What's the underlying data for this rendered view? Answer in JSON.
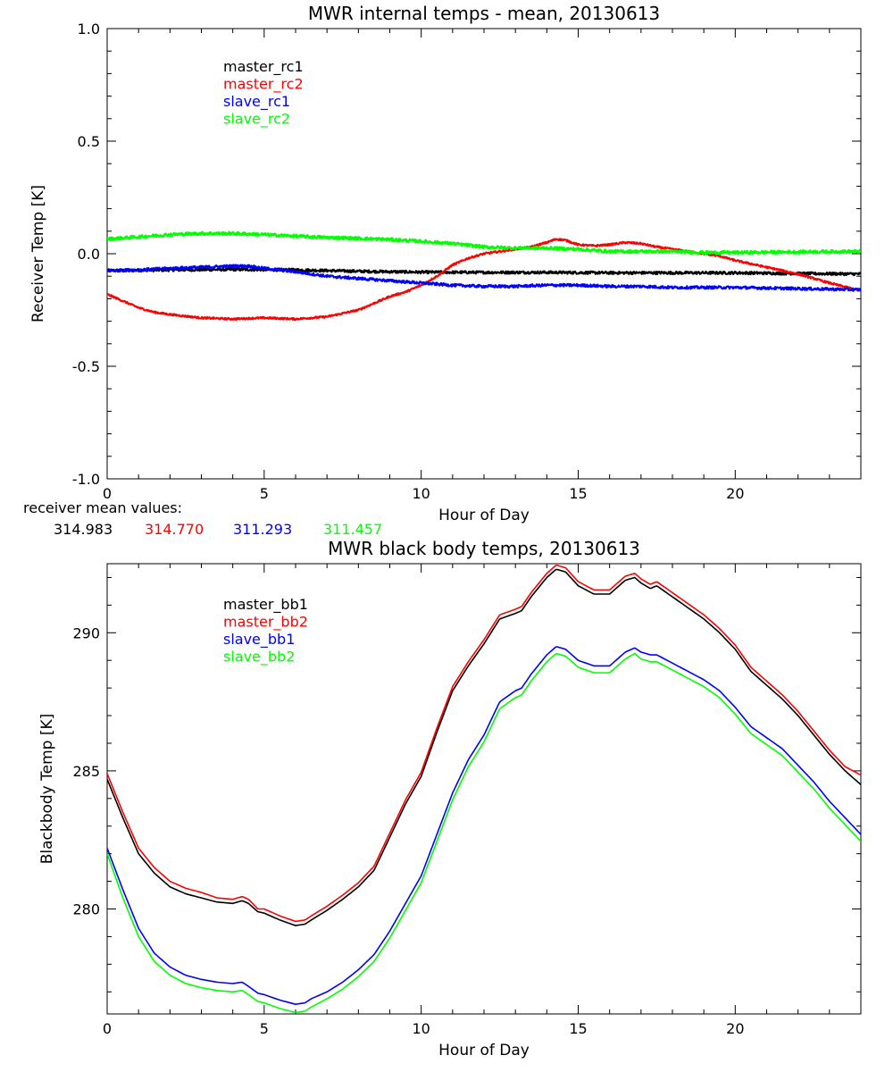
{
  "chart_data": [
    {
      "type": "line",
      "title": "MWR internal temps - mean, 20130613",
      "xlabel": "Hour of Day",
      "ylabel": "Receiver Temp [K]",
      "xlim": [
        0,
        24
      ],
      "ylim": [
        -1.0,
        1.0
      ],
      "xticks": [
        0,
        5,
        10,
        15,
        20
      ],
      "xtick_labels": [
        "0",
        "5",
        "10",
        "15",
        "20"
      ],
      "yticks": [
        -1.0,
        -0.5,
        0.0,
        0.5,
        1.0
      ],
      "ytick_labels": [
        "-1.0",
        "-0.5",
        "0.0",
        "0.5",
        "1.0"
      ],
      "legend_position": "top-left",
      "series": [
        {
          "name": "master_rc1",
          "color": "#000000",
          "noise": 0.006,
          "x": [
            0,
            2,
            4,
            6,
            8,
            10,
            12,
            14,
            16,
            18,
            20,
            22,
            24
          ],
          "values": [
            -0.075,
            -0.072,
            -0.07,
            -0.072,
            -0.078,
            -0.082,
            -0.083,
            -0.083,
            -0.085,
            -0.085,
            -0.085,
            -0.088,
            -0.09
          ]
        },
        {
          "name": "master_rc2",
          "color": "#ff0000",
          "noise": 0.004,
          "x": [
            0,
            0.5,
            1,
            1.5,
            2,
            3,
            4,
            5,
            6,
            7,
            8,
            8.5,
            9,
            9.5,
            10,
            10.5,
            11,
            11.5,
            12,
            12.5,
            13,
            13.5,
            14,
            14.3,
            14.6,
            15,
            15.5,
            16,
            16.5,
            17,
            17.5,
            18,
            18.5,
            19,
            19.5,
            20,
            21,
            22,
            23,
            24
          ],
          "values": [
            -0.18,
            -0.21,
            -0.24,
            -0.26,
            -0.27,
            -0.285,
            -0.29,
            -0.285,
            -0.29,
            -0.28,
            -0.25,
            -0.22,
            -0.19,
            -0.17,
            -0.14,
            -0.1,
            -0.05,
            -0.02,
            0.0,
            0.01,
            0.02,
            0.03,
            0.05,
            0.065,
            0.06,
            0.04,
            0.035,
            0.04,
            0.05,
            0.045,
            0.03,
            0.02,
            0.01,
            0.0,
            -0.01,
            -0.03,
            -0.06,
            -0.09,
            -0.13,
            -0.165
          ]
        },
        {
          "name": "slave_rc1",
          "color": "#0000ff",
          "noise": 0.006,
          "x": [
            0,
            1,
            2,
            3,
            4,
            4.5,
            5,
            6,
            7,
            8,
            9,
            10,
            11,
            12,
            13,
            14,
            15,
            16,
            17,
            18,
            19,
            20,
            22,
            24
          ],
          "values": [
            -0.075,
            -0.072,
            -0.065,
            -0.06,
            -0.055,
            -0.055,
            -0.065,
            -0.08,
            -0.1,
            -0.11,
            -0.12,
            -0.13,
            -0.14,
            -0.145,
            -0.145,
            -0.14,
            -0.14,
            -0.145,
            -0.145,
            -0.15,
            -0.15,
            -0.15,
            -0.155,
            -0.16
          ]
        },
        {
          "name": "slave_rc2",
          "color": "#00ff00",
          "noise": 0.007,
          "x": [
            0,
            1,
            2,
            3,
            4,
            5,
            6,
            7,
            8,
            9,
            10,
            11,
            12,
            13,
            14,
            15,
            16,
            17,
            18,
            19,
            20,
            22,
            24
          ],
          "values": [
            0.065,
            0.075,
            0.085,
            0.09,
            0.09,
            0.085,
            0.078,
            0.072,
            0.068,
            0.063,
            0.055,
            0.045,
            0.03,
            0.025,
            0.025,
            0.02,
            0.01,
            0.01,
            0.01,
            0.005,
            0.005,
            0.008,
            0.01
          ]
        }
      ]
    },
    {
      "type": "line",
      "title": "MWR black body temps, 20130613",
      "xlabel": "Hour of Day",
      "ylabel": "Blackbody Temp [K]",
      "xlim": [
        0,
        24
      ],
      "ylim": [
        276.2,
        292.5
      ],
      "xticks": [
        0,
        5,
        10,
        15,
        20
      ],
      "xtick_labels": [
        "0",
        "5",
        "10",
        "15",
        "20"
      ],
      "yticks": [
        280,
        285,
        290
      ],
      "ytick_labels": [
        "280",
        "285",
        "290"
      ],
      "legend_position": "top-left",
      "series": [
        {
          "name": "master_bb1",
          "color": "#000000",
          "noise": 0,
          "x": [
            0,
            0.5,
            1,
            1.5,
            2,
            2.5,
            3,
            3.5,
            4,
            4.3,
            4.5,
            4.8,
            5,
            5.5,
            6,
            6.3,
            6.5,
            7,
            7.5,
            8,
            8.5,
            9,
            9.5,
            10,
            10.5,
            11,
            11.5,
            12,
            12.5,
            13,
            13.2,
            13.5,
            14,
            14.3,
            14.6,
            15,
            15.5,
            16,
            16.5,
            16.8,
            17,
            17.3,
            17.5,
            18,
            18.5,
            19,
            19.5,
            20,
            20.5,
            21,
            21.5,
            22,
            22.5,
            23,
            23.5,
            24
          ],
          "values": [
            284.7,
            283.3,
            282.0,
            281.3,
            280.8,
            280.55,
            280.4,
            280.25,
            280.2,
            280.3,
            280.2,
            279.9,
            279.85,
            279.6,
            279.4,
            279.45,
            279.6,
            279.95,
            280.35,
            280.8,
            281.4,
            282.6,
            283.8,
            284.8,
            286.4,
            287.9,
            288.8,
            289.6,
            290.5,
            290.7,
            290.8,
            291.3,
            292.0,
            292.3,
            292.2,
            291.7,
            291.4,
            291.4,
            291.9,
            292.0,
            291.8,
            291.6,
            291.7,
            291.3,
            290.9,
            290.5,
            290.0,
            289.4,
            288.6,
            288.1,
            287.6,
            287.0,
            286.3,
            285.6,
            285.0,
            284.5
          ]
        },
        {
          "name": "master_bb2",
          "color": "#ff0000",
          "noise": 0,
          "x": [
            0,
            0.5,
            1,
            1.5,
            2,
            2.5,
            3,
            3.5,
            4,
            4.3,
            4.5,
            4.8,
            5,
            5.5,
            6,
            6.3,
            6.5,
            7,
            7.5,
            8,
            8.5,
            9,
            9.5,
            10,
            10.5,
            11,
            11.5,
            12,
            12.5,
            13,
            13.2,
            13.5,
            14,
            14.3,
            14.6,
            15,
            15.5,
            16,
            16.5,
            16.8,
            17,
            17.3,
            17.5,
            18,
            18.5,
            19,
            19.5,
            20,
            20.5,
            21,
            21.5,
            22,
            22.5,
            23,
            23.5,
            24
          ],
          "values": [
            284.9,
            283.5,
            282.2,
            281.5,
            281.0,
            280.75,
            280.6,
            280.4,
            280.35,
            280.45,
            280.35,
            280.0,
            280.0,
            279.75,
            279.55,
            279.6,
            279.75,
            280.1,
            280.5,
            280.95,
            281.55,
            282.75,
            283.95,
            284.95,
            286.55,
            288.05,
            288.95,
            289.75,
            290.65,
            290.85,
            290.95,
            291.45,
            292.15,
            292.45,
            292.35,
            291.85,
            291.55,
            291.55,
            292.05,
            292.15,
            291.95,
            291.75,
            291.85,
            291.45,
            291.05,
            290.65,
            290.15,
            289.55,
            288.75,
            288.25,
            287.75,
            287.15,
            286.45,
            285.75,
            285.15,
            284.85
          ]
        },
        {
          "name": "slave_bb1",
          "color": "#0000ff",
          "noise": 0,
          "x": [
            0,
            0.5,
            1,
            1.5,
            2,
            2.5,
            3,
            3.5,
            4,
            4.3,
            4.5,
            4.8,
            5,
            5.5,
            6,
            6.3,
            6.5,
            7,
            7.5,
            8,
            8.5,
            9,
            9.5,
            10,
            10.5,
            11,
            11.5,
            12,
            12.5,
            13,
            13.2,
            13.5,
            14,
            14.3,
            14.6,
            15,
            15.5,
            16,
            16.5,
            16.8,
            17,
            17.3,
            17.5,
            18,
            18.5,
            19,
            19.5,
            20,
            20.5,
            21,
            21.5,
            22,
            22.5,
            23,
            23.5,
            24
          ],
          "values": [
            282.2,
            280.7,
            279.3,
            278.4,
            277.9,
            277.6,
            277.45,
            277.35,
            277.3,
            277.35,
            277.2,
            276.95,
            276.9,
            276.7,
            276.55,
            276.6,
            276.75,
            277.0,
            277.35,
            277.8,
            278.35,
            279.2,
            280.2,
            281.2,
            282.7,
            284.2,
            285.4,
            286.3,
            287.5,
            287.9,
            288.0,
            288.5,
            289.2,
            289.5,
            289.4,
            289.0,
            288.8,
            288.8,
            289.3,
            289.45,
            289.3,
            289.2,
            289.2,
            288.9,
            288.6,
            288.3,
            287.9,
            287.3,
            286.6,
            286.2,
            285.8,
            285.2,
            284.6,
            283.9,
            283.3,
            282.7
          ]
        },
        {
          "name": "slave_bb2",
          "color": "#00ff00",
          "noise": 0,
          "x": [
            0,
            0.5,
            1,
            1.5,
            2,
            2.5,
            3,
            3.5,
            4,
            4.3,
            4.5,
            4.8,
            5,
            5.5,
            6,
            6.3,
            6.5,
            7,
            7.5,
            8,
            8.5,
            9,
            9.5,
            10,
            10.5,
            11,
            11.5,
            12,
            12.5,
            13,
            13.2,
            13.5,
            14,
            14.3,
            14.6,
            15,
            15.5,
            16,
            16.5,
            16.8,
            17,
            17.3,
            17.5,
            18,
            18.5,
            19,
            19.5,
            20,
            20.5,
            21,
            21.5,
            22,
            22.5,
            23,
            23.5,
            24
          ],
          "values": [
            282.0,
            280.4,
            279.0,
            278.1,
            277.6,
            277.3,
            277.15,
            277.05,
            277.0,
            277.05,
            276.9,
            276.65,
            276.6,
            276.4,
            276.25,
            276.3,
            276.45,
            276.75,
            277.1,
            277.55,
            278.1,
            278.95,
            279.95,
            280.95,
            282.45,
            283.95,
            285.15,
            286.05,
            287.25,
            287.65,
            287.75,
            288.25,
            288.95,
            289.25,
            289.15,
            288.75,
            288.55,
            288.55,
            289.05,
            289.25,
            289.05,
            288.95,
            288.95,
            288.65,
            288.35,
            288.05,
            287.65,
            287.05,
            286.35,
            285.95,
            285.55,
            284.95,
            284.35,
            283.65,
            283.05,
            282.45
          ]
        }
      ]
    }
  ],
  "mean_values": {
    "label": "receiver mean values:",
    "items": [
      {
        "text": "314.983",
        "color": "#000000"
      },
      {
        "text": "314.770",
        "color": "#ff0000"
      },
      {
        "text": "311.293",
        "color": "#0000ff"
      },
      {
        "text": "311.457",
        "color": "#00ff00"
      }
    ]
  }
}
